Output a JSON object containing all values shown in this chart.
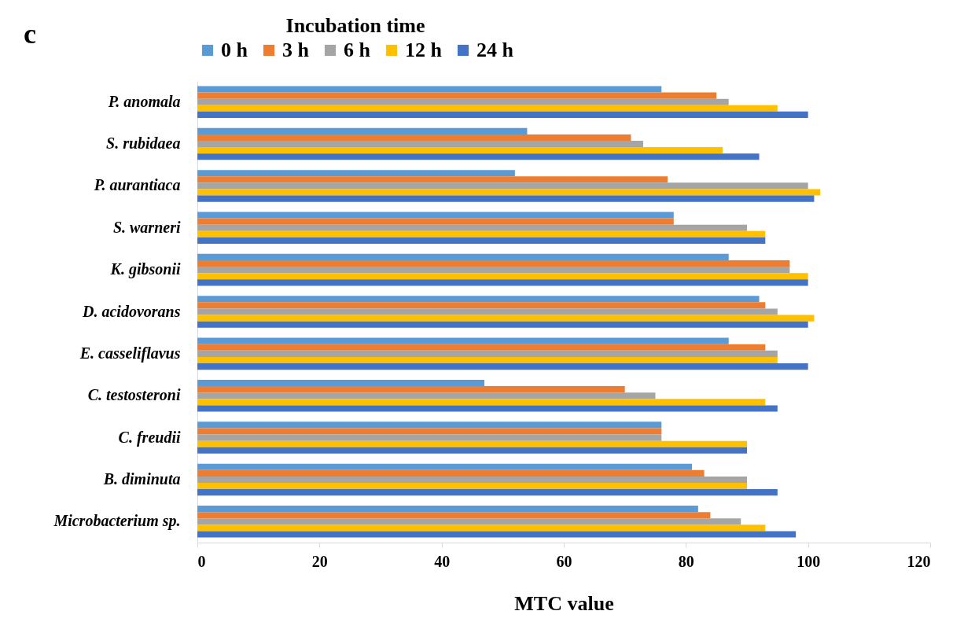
{
  "chart_data": {
    "type": "bar",
    "orientation": "horizontal",
    "categories": [
      "P. anomala",
      "S. rubidaea",
      "P. aurantiaca",
      "S. warneri",
      "K. gibsonii",
      "D. acidovorans",
      "E. casseliflavus",
      "C. testosteroni",
      "C. freudii",
      "B. diminuta",
      "Microbacterium sp."
    ],
    "series": [
      {
        "name": "0 h",
        "color": "#5b9bd5",
        "values": [
          76,
          54,
          52,
          78,
          87,
          92,
          87,
          47,
          76,
          81,
          82
        ]
      },
      {
        "name": "3 h",
        "color": "#ed7d31",
        "values": [
          85,
          71,
          77,
          78,
          97,
          93,
          93,
          70,
          76,
          83,
          84
        ]
      },
      {
        "name": "6 h",
        "color": "#a5a5a5",
        "values": [
          87,
          73,
          100,
          90,
          97,
          95,
          95,
          75,
          76,
          90,
          89
        ]
      },
      {
        "name": "12 h",
        "color": "#ffc000",
        "values": [
          95,
          86,
          102,
          93,
          100,
          101,
          95,
          93,
          90,
          90,
          93
        ]
      },
      {
        "name": "24 h",
        "color": "#4472c4",
        "values": [
          100,
          92,
          101,
          93,
          100,
          100,
          100,
          95,
          90,
          95,
          98
        ]
      }
    ],
    "xlabel": "MTC value",
    "legend_title": "Incubation time",
    "legend": "top",
    "xlim": [
      0,
      120
    ],
    "xticks": [
      0,
      20,
      40,
      60,
      80,
      100,
      120
    ],
    "grid": false,
    "annotations": [
      "c"
    ]
  }
}
